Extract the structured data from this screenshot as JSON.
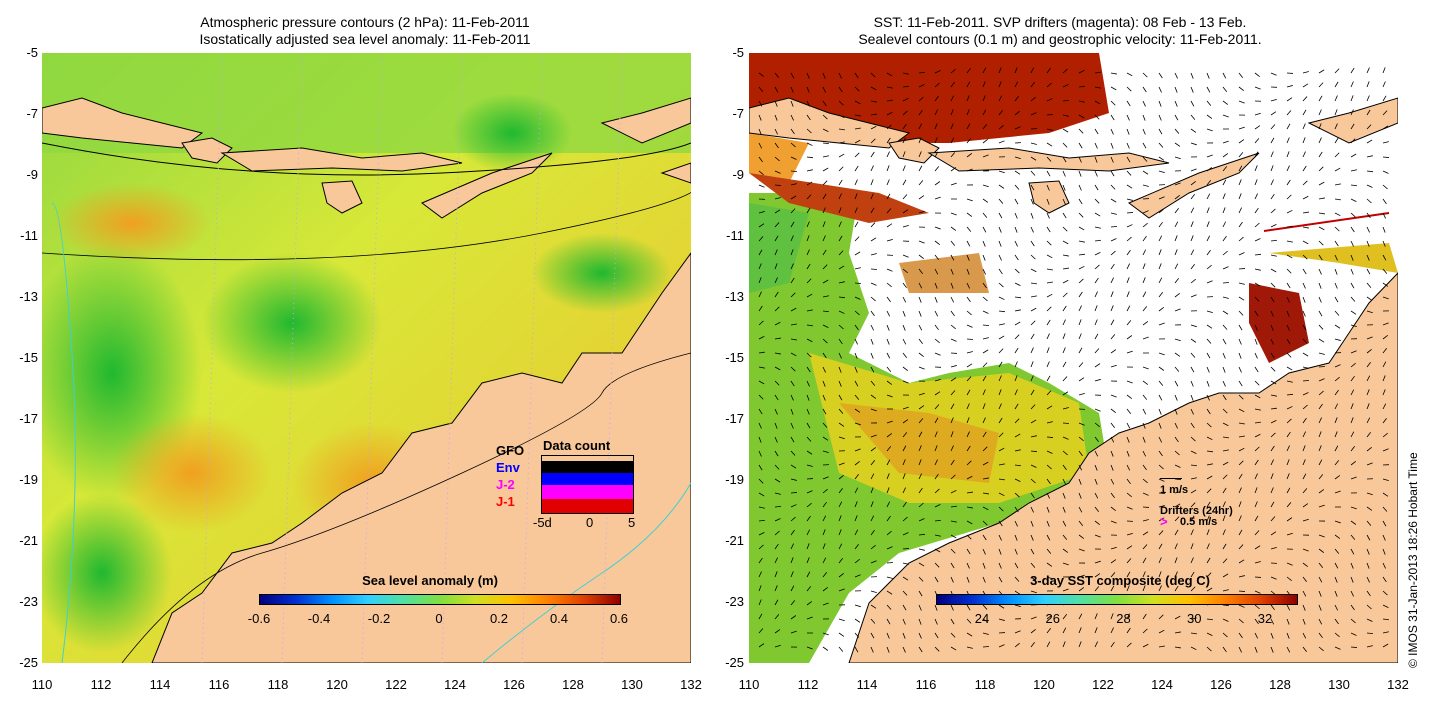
{
  "left_panel": {
    "title_line1": "Atmospheric pressure contours (2 hPa): 11-Feb-2011",
    "title_line2": "Isostatically adjusted sea level anomaly: 11-Feb-2011",
    "y_ticks": [
      "-5",
      "-7",
      "-9",
      "-11",
      "-13",
      "-15",
      "-17",
      "-19",
      "-21",
      "-23",
      "-25"
    ],
    "x_ticks": [
      "110",
      "112",
      "114",
      "116",
      "118",
      "120",
      "122",
      "124",
      "126",
      "128",
      "130",
      "132"
    ],
    "colorbar_title": "Sea level anomaly (m)",
    "colorbar_ticks": [
      "-0.6",
      "-0.4",
      "-0.2",
      "0",
      "0.2",
      "0.4",
      "0.6"
    ],
    "legend": {
      "title": "Data count",
      "entries": [
        {
          "label": "GFO",
          "color": "#000000"
        },
        {
          "label": "Env",
          "color": "#0000ff"
        },
        {
          "label": "J-2",
          "color": "#ff00ff"
        },
        {
          "label": "J-1",
          "color": "#ff0000"
        }
      ],
      "x_ticks": [
        "-5d",
        "0",
        "5"
      ]
    }
  },
  "right_panel": {
    "title_line1": "SST: 11-Feb-2011. SVP drifters (magenta): 08 Feb - 13 Feb.",
    "title_line2": "Sealevel contours (0.1 m) and geostrophic velocity: 11-Feb-2011.",
    "y_ticks": [
      "-5",
      "-7",
      "-9",
      "-11",
      "-13",
      "-15",
      "-17",
      "-19",
      "-21",
      "-23",
      "-25"
    ],
    "x_ticks": [
      "110",
      "112",
      "114",
      "116",
      "118",
      "120",
      "122",
      "124",
      "126",
      "128",
      "130",
      "132"
    ],
    "colorbar_title": "3-day SST composite (deg C)",
    "colorbar_ticks": [
      "24",
      "26",
      "28",
      "30",
      "32"
    ],
    "velocity_label": "1 m/s",
    "drifters_label": "Drifters (24hr)",
    "drifters_speed": "0.5 m/s"
  },
  "copyright": "© IMOS 31-Jan-2013 18:26 Hobart Time",
  "colors": {
    "land": "#f8c89a",
    "sea_high": "#f0e040",
    "sea_mid": "#a0e040",
    "sea_low": "#30c030"
  }
}
